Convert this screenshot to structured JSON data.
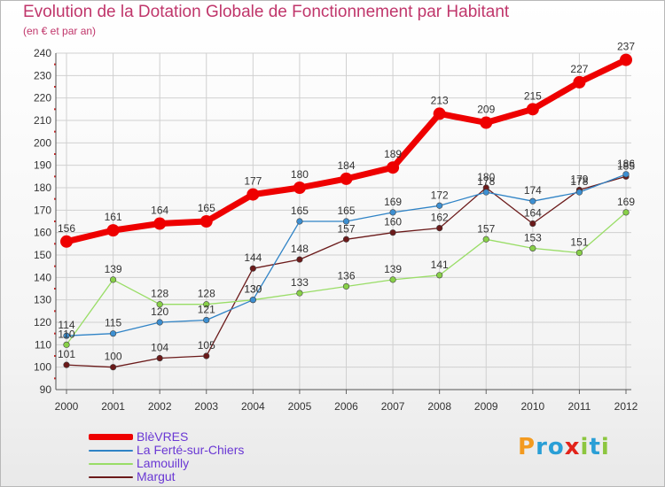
{
  "header": {
    "title": "Evolution de la Dotation Globale de Fonctionnement par Habitant",
    "subtitle": "(en € et par an)"
  },
  "colors": {
    "title": "#c0366b",
    "legend_text": "#6a38d4",
    "grid": "#d0d0d0",
    "axis": "#333333"
  },
  "chart_data": {
    "type": "line",
    "title": "Evolution de la Dotation Globale de Fonctionnement par Habitant",
    "subtitle": "(en € et par an)",
    "xlabel": "",
    "ylabel": "",
    "x": [
      "2000",
      "2001",
      "2002",
      "2003",
      "2004",
      "2005",
      "2006",
      "2007",
      "2008",
      "2009",
      "2010",
      "2011",
      "2012"
    ],
    "ylim": [
      90,
      240
    ],
    "yticks": [
      90,
      100,
      110,
      120,
      130,
      140,
      150,
      160,
      170,
      180,
      190,
      200,
      210,
      220,
      230,
      240
    ],
    "grid": true,
    "legend_position": "bottom-left",
    "series": [
      {
        "name": "BlèVRES",
        "color": "#ee0000",
        "values": [
          156,
          161,
          164,
          165,
          177,
          180,
          184,
          189,
          213,
          209,
          215,
          227,
          237
        ],
        "labels": [
          "156",
          "161",
          "164",
          "165",
          "177",
          "180",
          "184",
          "189",
          "213",
          "209",
          "215",
          "227",
          "237"
        ]
      },
      {
        "name": "La Ferté-sur-Chiers",
        "color": "#2f83c6",
        "marker_color": "#3d8fd1",
        "values": [
          114,
          115,
          120,
          121,
          130,
          165,
          165,
          169,
          172,
          178,
          174,
          178,
          186
        ],
        "labels": [
          "114",
          "115",
          "120",
          "121",
          "130",
          "165",
          "165",
          "169",
          "172",
          "178",
          "174",
          "178",
          "186"
        ]
      },
      {
        "name": "Lamouilly",
        "color": "#99dd66",
        "marker_color": "#88d048",
        "values": [
          110,
          139,
          128,
          128,
          130,
          133,
          136,
          139,
          141,
          157,
          153,
          151,
          169
        ],
        "labels": [
          "110",
          "139",
          "128",
          "128",
          "130",
          "133",
          "136",
          "139",
          "141",
          "157",
          "153",
          "151",
          "169"
        ]
      },
      {
        "name": "Margut",
        "color": "#6b1a1a",
        "marker_color": "#6b1a1a",
        "values": [
          101,
          100,
          104,
          105,
          144,
          148,
          157,
          160,
          162,
          180,
          164,
          179,
          185
        ],
        "labels": [
          "101",
          "100",
          "104",
          "105",
          "144",
          "148",
          "157",
          "160",
          "162",
          "180",
          "164",
          "179",
          "185"
        ]
      }
    ]
  },
  "logo": {
    "letters": [
      {
        "ch": "P",
        "color": "#f39a1f"
      },
      {
        "ch": "r",
        "color": "#2a9fd6"
      },
      {
        "ch": "o",
        "color": "#2a9fd6"
      },
      {
        "ch": "x",
        "color": "#e2231a"
      },
      {
        "ch": "i",
        "color": "#8cc63f"
      },
      {
        "ch": "t",
        "color": "#2a9fd6"
      },
      {
        "ch": "i",
        "color": "#8cc63f"
      }
    ]
  }
}
